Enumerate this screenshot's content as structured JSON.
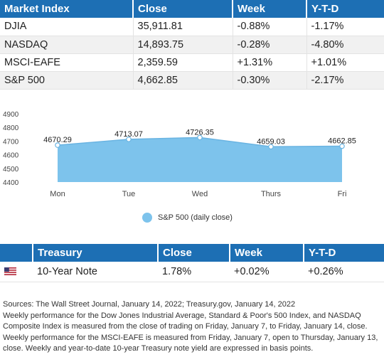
{
  "market_table": {
    "headers": [
      "Market Index",
      "Close",
      "Week",
      "Y-T-D"
    ],
    "rows": [
      [
        "DJIA",
        "35,911.81",
        "-0.88%",
        "-1.17%"
      ],
      [
        "NASDAQ",
        "14,893.75",
        "-0.28%",
        "-4.80%"
      ],
      [
        "MSCI-EAFE",
        "2,359.59",
        "+1.31%",
        "+1.01%"
      ],
      [
        "S&P 500",
        "4,662.85",
        "-0.30%",
        "-2.17%"
      ]
    ]
  },
  "chart_data": {
    "type": "area",
    "categories": [
      "Mon",
      "Tue",
      "Wed",
      "Thurs",
      "Fri"
    ],
    "series": [
      {
        "name": "S&P 500 (daily close)",
        "values": [
          4670.29,
          4713.07,
          4726.35,
          4659.03,
          4662.85
        ]
      }
    ],
    "data_labels": [
      "4670.29",
      "4713.07",
      "4726.35",
      "4659.03",
      "4662.85"
    ],
    "yticks": [
      4400,
      4500,
      4600,
      4700,
      4800,
      4900
    ],
    "ylim": [
      4400,
      4900
    ],
    "legend_position": "bottom-center",
    "grid": false,
    "color": "#7dc3ec"
  },
  "treasury_table": {
    "headers": [
      "",
      "Treasury",
      "Close",
      "Week",
      "Y-T-D"
    ],
    "rows": [
      [
        "10-Year Note",
        "1.78%",
        "+0.02%",
        "+0.26%"
      ]
    ]
  },
  "notes": [
    "Sources: The Wall Street Journal, January 14, 2022; Treasury.gov, January 14, 2022",
    "Weekly performance for the Dow Jones Industrial Average, Standard & Poor's 500 Index, and NASDAQ Composite Index is measured from the close of trading on Friday, January 7, to Friday, January 14, close.",
    "Weekly performance for the MSCI-EAFE is measured from Friday, January 7, open to Thursday, January 13, close. Weekly and year-to-date 10-year Treasury note yield are expressed in basis points."
  ]
}
